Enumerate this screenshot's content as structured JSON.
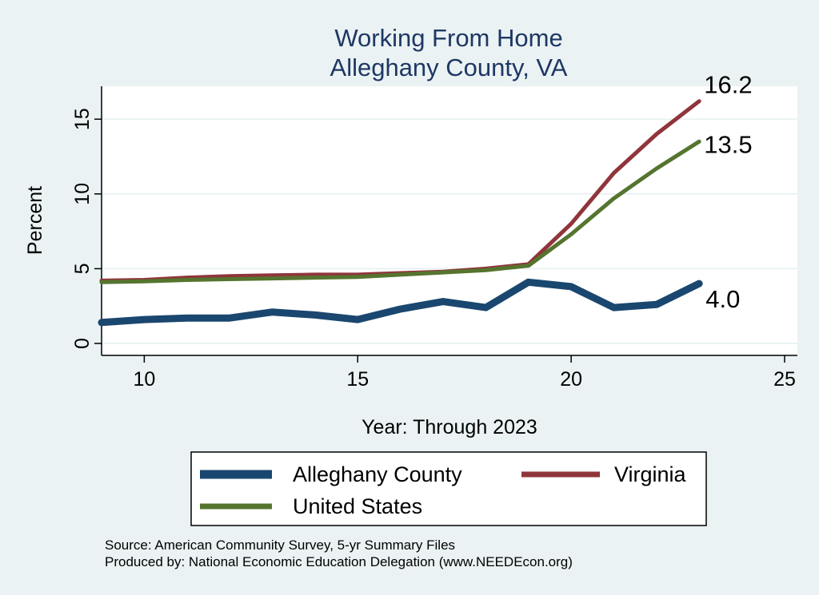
{
  "chart_data": {
    "type": "line",
    "title": "Working From Home",
    "subtitle": "Alleghany County, VA",
    "xlabel": "Year: Through 2023",
    "ylabel": "Percent",
    "xlim": [
      9,
      25.3
    ],
    "ylim": [
      -0.8,
      17.2
    ],
    "xticks": [
      10,
      15,
      20,
      25
    ],
    "yticks": [
      0,
      5,
      10,
      15
    ],
    "grid": true,
    "legend_position": "bottom",
    "series": [
      {
        "name": "Alleghany County",
        "color": "#1a476f",
        "x": [
          9,
          10,
          11,
          12,
          13,
          14,
          15,
          16,
          17,
          18,
          19,
          20,
          21,
          22,
          23
        ],
        "y": [
          1.4,
          1.6,
          1.7,
          1.7,
          2.1,
          1.9,
          1.6,
          2.3,
          2.8,
          2.4,
          4.1,
          3.8,
          2.4,
          2.6,
          4.0
        ],
        "end_label": "4.0"
      },
      {
        "name": "Virginia",
        "color": "#90353b",
        "x": [
          9,
          10,
          11,
          12,
          13,
          14,
          15,
          16,
          17,
          18,
          19,
          20,
          21,
          22,
          23
        ],
        "y": [
          4.2,
          4.25,
          4.4,
          4.5,
          4.55,
          4.6,
          4.6,
          4.7,
          4.8,
          5.0,
          5.3,
          8.0,
          11.4,
          14.0,
          16.2
        ],
        "end_label": "16.2"
      },
      {
        "name": "United States",
        "color": "#55752f",
        "x": [
          9,
          10,
          11,
          12,
          13,
          14,
          15,
          16,
          17,
          18,
          19,
          20,
          21,
          22,
          23
        ],
        "y": [
          4.1,
          4.15,
          4.25,
          4.3,
          4.35,
          4.4,
          4.45,
          4.6,
          4.75,
          4.9,
          5.2,
          7.3,
          9.7,
          11.7,
          13.5
        ],
        "end_label": "13.5"
      }
    ],
    "source_lines": [
      "Source: American Community Survey, 5-yr Summary Files",
      "Produced by: National Economic Education Delegation (www.NEEDEcon.org)"
    ]
  }
}
